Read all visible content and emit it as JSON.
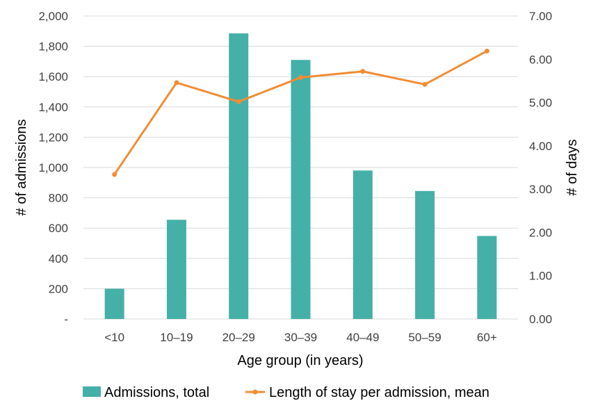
{
  "chart_data": {
    "type": "bar",
    "categories": [
      "<10",
      "10–19",
      "20–29",
      "30–39",
      "40–49",
      "50–59",
      "60+"
    ],
    "series": [
      {
        "name": "Admissions, total",
        "type": "bar",
        "axis": "left",
        "color": "#45b0a8",
        "values": [
          200,
          655,
          1885,
          1710,
          980,
          845,
          548
        ]
      },
      {
        "name": "Length of stay per admission, mean",
        "type": "line",
        "axis": "right",
        "color": "#f28c33",
        "values": [
          3.34,
          5.46,
          5.02,
          5.58,
          5.72,
          5.42,
          6.19
        ]
      }
    ],
    "xlabel": "Age group (in years)",
    "ylabel": "# of admissions",
    "y2label": "# of days",
    "ylim": [
      0,
      2000
    ],
    "y2lim": [
      0,
      7
    ],
    "yticks": [
      "-",
      "200",
      "400",
      "600",
      "800",
      "1,000",
      "1,200",
      "1,400",
      "1,600",
      "1,800",
      "2,000"
    ],
    "y2ticks": [
      "0.00",
      "1.00",
      "2.00",
      "3.00",
      "4.00",
      "5.00",
      "6.00",
      "7.00"
    ],
    "grid": true,
    "legend_position": "bottom"
  }
}
